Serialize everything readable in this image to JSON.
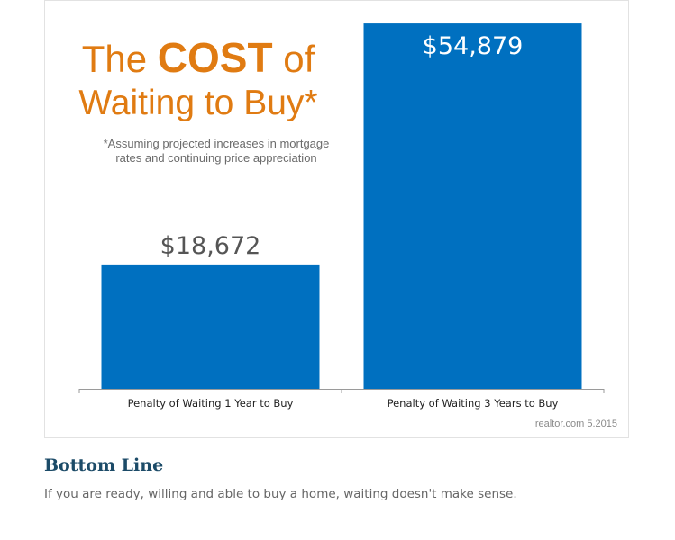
{
  "figure": {
    "title_prefix": "The ",
    "title_emphasis": "COST",
    "title_suffix": " of",
    "title_line2": "Waiting to Buy*",
    "subtitle_line1": "*Assuming projected increases in mortgage",
    "subtitle_line2": "rates and continuing price appreciation",
    "source": "realtor.com 5.2015"
  },
  "chart_data": {
    "type": "bar",
    "categories": [
      "Penalty of Waiting 1 Year to Buy",
      "Penalty of Waiting 3 Years to Buy"
    ],
    "values": [
      18672,
      54879
    ],
    "value_labels": [
      "$18,672",
      "$54,879"
    ],
    "title": "The COST of Waiting to Buy*",
    "xlabel": "",
    "ylabel": "",
    "ylim": [
      0,
      58000
    ],
    "grid": false,
    "legend": "none",
    "bar_color": "#0070c0",
    "title_color": "#e07b12"
  },
  "article": {
    "heading": "Bottom Line",
    "text": "If you are ready, willing and able to buy a home, waiting doesn't make sense."
  }
}
